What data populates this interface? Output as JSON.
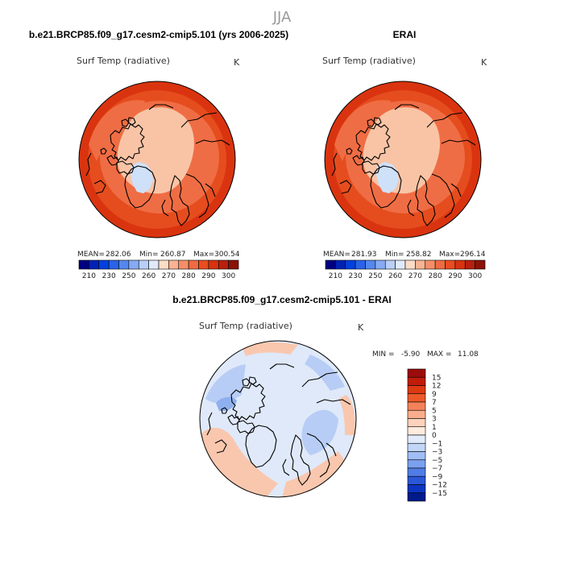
{
  "season": "JJA",
  "chart_data": [
    {
      "type": "heatmap",
      "projection": "north polar stereographic",
      "title": "b.e21.BRCP85.f09_g17.cesm2-cmip5.101 (yrs 2006-2025)",
      "variable": "Surf Temp (radiative)",
      "units": "K",
      "stats": {
        "mean_label": "MEAN=",
        "mean": "282.06",
        "min_label": "Min=",
        "min": "260.87",
        "max_label": "Max=",
        "max": "300.54"
      },
      "colorbar": {
        "colors": [
          "#000080",
          "#0022b4",
          "#0040dd",
          "#2a63e8",
          "#5588ee",
          "#86aaf3",
          "#b9cff8",
          "#e0eafb",
          "#fddcc6",
          "#f9b392",
          "#f48e68",
          "#ef6b42",
          "#e94d20",
          "#d8320f",
          "#b5210e",
          "#8a1309"
        ],
        "tick_labels": [
          "210",
          "230",
          "250",
          "260",
          "270",
          "280",
          "290",
          "300"
        ]
      },
      "regions": {
        "ocean_arctic": "#f9c4a6",
        "ice_greenland": "#cfe0f9",
        "midlat": "#ef6d44",
        "south": "#e54d1e",
        "tropics": "#d9340f"
      }
    },
    {
      "type": "heatmap",
      "projection": "north polar stereographic",
      "title": "ERAI",
      "variable": "Surf Temp (radiative)",
      "units": "K",
      "stats": {
        "mean_label": "MEAN=",
        "mean": "281.93",
        "min_label": "Min=",
        "min": "258.82",
        "max_label": "Max=",
        "max": "296.14"
      },
      "colorbar": {
        "colors": [
          "#000080",
          "#0022b4",
          "#0040dd",
          "#2a63e8",
          "#5588ee",
          "#86aaf3",
          "#b9cff8",
          "#e0eafb",
          "#fddcc6",
          "#f9b392",
          "#f48e68",
          "#ef6b42",
          "#e94d20",
          "#d8320f",
          "#b5210e",
          "#8a1309"
        ],
        "tick_labels": [
          "210",
          "230",
          "250",
          "260",
          "270",
          "280",
          "290",
          "300"
        ]
      },
      "regions": {
        "ocean_arctic": "#f9c4a6",
        "ice_greenland": "#cfe0f9",
        "midlat": "#ef6d44",
        "south": "#e54d1e",
        "tropics": "#d9340f"
      }
    },
    {
      "type": "heatmap",
      "projection": "north polar stereographic",
      "title": "b.e21.BRCP85.f09_g17.cesm2-cmip5.101 - ERAI",
      "variable": "Surf Temp (radiative)",
      "units": "K",
      "stats": {
        "min_label": "MIN =",
        "min": "-5.90",
        "max_label": "MAX =",
        "max": "11.08"
      },
      "colorbar": {
        "orientation": "vertical",
        "tick_labels_top_to_bottom": [
          "15",
          "12",
          "9",
          "7",
          "5",
          "3",
          "1",
          "0",
          "−1",
          "−3",
          "−5",
          "−7",
          "−9",
          "−12",
          "−15"
        ],
        "colors_top_to_bottom": [
          "#9b0c0c",
          "#c01c0a",
          "#dd3a12",
          "#ec5a2a",
          "#f4825a",
          "#f9ad8c",
          "#fcd2bd",
          "#fdebde",
          "#e1ebfb",
          "#c2d6f8",
          "#a0bdf4",
          "#7aa0ee",
          "#507de5",
          "#2a57d8",
          "#0b34c0",
          "#001a8a"
        ]
      },
      "regions": {
        "base": "#dfe9fa",
        "warm": "#f9c7ae",
        "cool": "#b7cdf5",
        "strong_cool": "#8fb0ee"
      }
    }
  ]
}
